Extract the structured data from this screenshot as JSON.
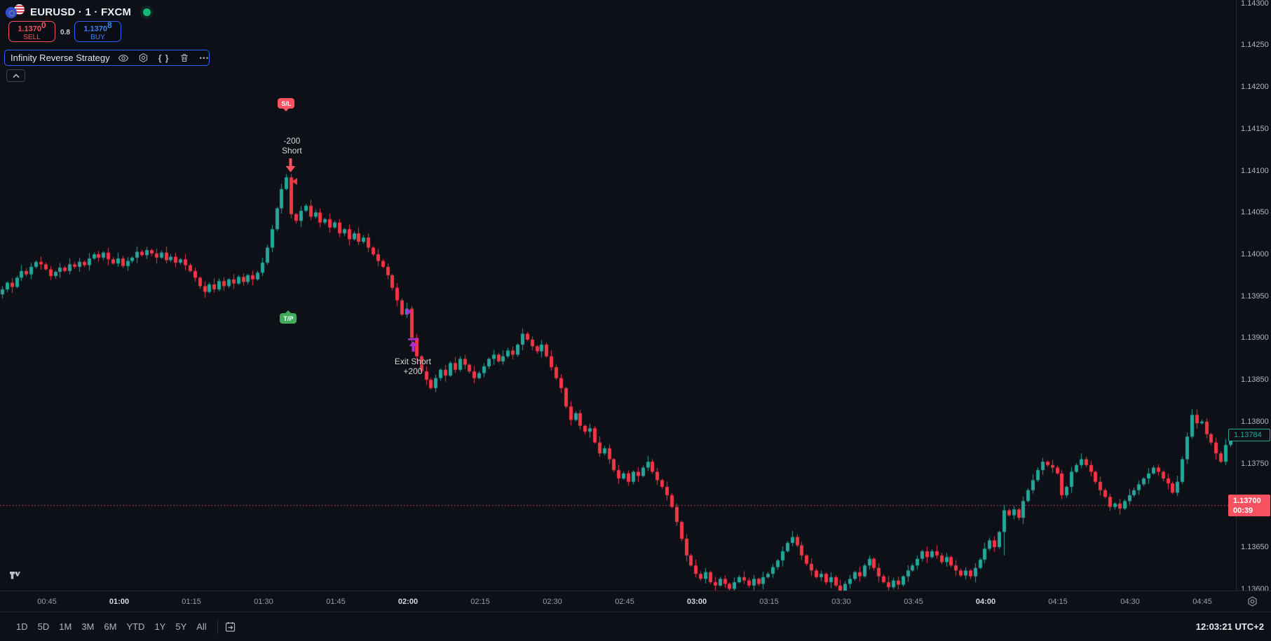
{
  "header": {
    "symbol_title": "EURUSD · 1 · FXCM",
    "sell_button": {
      "price_main": "1.1370",
      "price_sup": "0",
      "label": "SELL"
    },
    "spread": "0.8",
    "buy_button": {
      "price_main": "1.1370",
      "price_sup": "8",
      "label": "BUY"
    },
    "strategy_name": "Infinity Reverse Strategy",
    "more_dots": "•••",
    "braces": "{ }",
    "collapse_chevron": "︿"
  },
  "markers": {
    "sl_badge": "S/L",
    "tp_badge": "T/P",
    "entry_line1": "-200",
    "entry_line2": "Short",
    "exit_line1": "Exit Short",
    "exit_line2": "+200"
  },
  "price_axis": {
    "labels": [
      "1.14300",
      "1.14250",
      "1.14200",
      "1.14150",
      "1.14100",
      "1.14050",
      "1.14000",
      "1.13950",
      "1.13900",
      "1.13850",
      "1.13800",
      "1.13750",
      "1.13700",
      "1.13650",
      "1.13600"
    ],
    "last_price_label": "1.13784",
    "countdown_price": "1.13700",
    "countdown_time": "00:39"
  },
  "time_axis": {
    "labels": [
      "00:45",
      "01:00",
      "01:15",
      "01:30",
      "01:45",
      "02:00",
      "02:15",
      "02:30",
      "02:45",
      "03:00",
      "03:15",
      "03:30",
      "03:45",
      "04:00",
      "04:15",
      "04:30",
      "04:45"
    ],
    "hour_labels": [
      "01:00",
      "02:00",
      "03:00",
      "04:00"
    ]
  },
  "toolbar": {
    "ranges": [
      "1D",
      "5D",
      "1M",
      "3M",
      "6M",
      "YTD",
      "1Y",
      "5Y",
      "All"
    ],
    "clock": "12:03:21 UTC+2"
  },
  "colors": {
    "up": "#26a69a",
    "down": "#f23645",
    "sell_red": "#f7525f",
    "buy_blue": "#2962ff",
    "tp_green": "#43a95c",
    "exit_purple": "#ab2fd6",
    "last_price": "#26a69a"
  },
  "chart_data": {
    "type": "candlestick",
    "symbol": "EURUSD",
    "interval_minutes": 1,
    "exchange": "FXCM",
    "grid": false,
    "ylim": [
      1.13598,
      1.14304
    ],
    "price_line": {
      "price": 1.137,
      "style": "dotted",
      "color": "#f7525f"
    },
    "last_price": 1.13784,
    "bid": 1.137,
    "ask": 1.13708,
    "first_open": 1.13952,
    "closes": [
      1.13958,
      1.13966,
      1.13961,
      1.13972,
      1.1398,
      1.13976,
      1.13985,
      1.13991,
      1.13988,
      1.13982,
      1.13974,
      1.13979,
      1.13984,
      1.1398,
      1.13988,
      1.13985,
      1.13991,
      1.13987,
      1.13995,
      1.14,
      1.13996,
      1.14002,
      1.13994,
      1.13989,
      1.13995,
      1.13986,
      1.13992,
      1.13996,
      1.14003,
      1.13999,
      1.14005,
      1.14001,
      1.13996,
      1.14002,
      1.13993,
      1.13997,
      1.1399,
      1.13994,
      1.13987,
      1.1398,
      1.13972,
      1.13962,
      1.13955,
      1.13964,
      1.13958,
      1.13968,
      1.13962,
      1.1397,
      1.13965,
      1.13973,
      1.13967,
      1.13975,
      1.1397,
      1.13978,
      1.1399,
      1.14008,
      1.1403,
      1.14055,
      1.14078,
      1.14092,
      1.14048,
      1.1404,
      1.14052,
      1.14058,
      1.14045,
      1.1405,
      1.14038,
      1.14042,
      1.14032,
      1.14038,
      1.14025,
      1.1403,
      1.14018,
      1.14025,
      1.14015,
      1.1402,
      1.14008,
      1.14,
      1.13992,
      1.13985,
      1.13975,
      1.1396,
      1.13945,
      1.13928,
      1.13935,
      1.139,
      1.13878,
      1.1386,
      1.1385,
      1.1384,
      1.13852,
      1.13862,
      1.13855,
      1.1387,
      1.13862,
      1.13875,
      1.13868,
      1.1386,
      1.13852,
      1.13858,
      1.13866,
      1.13875,
      1.1388,
      1.13872,
      1.13878,
      1.13885,
      1.1388,
      1.13892,
      1.13905,
      1.13898,
      1.1389,
      1.13884,
      1.13892,
      1.13878,
      1.13865,
      1.13852,
      1.1384,
      1.13818,
      1.13802,
      1.1381,
      1.13795,
      1.13788,
      1.13792,
      1.13775,
      1.13762,
      1.13768,
      1.13755,
      1.13742,
      1.13732,
      1.13738,
      1.13728,
      1.1374,
      1.13735,
      1.13745,
      1.13752,
      1.1374,
      1.1373,
      1.13722,
      1.13712,
      1.13698,
      1.1368,
      1.1366,
      1.1364,
      1.13628,
      1.13618,
      1.13612,
      1.1362,
      1.13608,
      1.13604,
      1.13612,
      1.13606,
      1.136,
      1.13608,
      1.13614,
      1.1361,
      1.13604,
      1.13612,
      1.13606,
      1.13614,
      1.13618,
      1.13626,
      1.13634,
      1.13645,
      1.13655,
      1.13662,
      1.13652,
      1.1364,
      1.1363,
      1.13622,
      1.13614,
      1.13618,
      1.13608,
      1.13614,
      1.13604,
      1.13598,
      1.13606,
      1.13612,
      1.1362,
      1.13615,
      1.13628,
      1.13636,
      1.13625,
      1.13615,
      1.13608,
      1.13602,
      1.1361,
      1.13605,
      1.13615,
      1.13622,
      1.13628,
      1.13636,
      1.13645,
      1.13638,
      1.13645,
      1.1364,
      1.13632,
      1.13638,
      1.13628,
      1.13622,
      1.13616,
      1.13622,
      1.13615,
      1.13625,
      1.13635,
      1.13648,
      1.13658,
      1.1365,
      1.13668,
      1.13694,
      1.13688,
      1.13695,
      1.13685,
      1.13705,
      1.13718,
      1.1373,
      1.13742,
      1.13752,
      1.13748,
      1.13745,
      1.13738,
      1.13712,
      1.13722,
      1.1374,
      1.13748,
      1.13755,
      1.13748,
      1.1374,
      1.13728,
      1.13718,
      1.1371,
      1.13698,
      1.13702,
      1.13696,
      1.13705,
      1.13712,
      1.13718,
      1.13725,
      1.13732,
      1.13738,
      1.13745,
      1.1374,
      1.13732,
      1.13726,
      1.13715,
      1.13728,
      1.13755,
      1.13782,
      1.13808,
      1.13798,
      1.138,
      1.13785,
      1.13775,
      1.13762,
      1.13752,
      1.13772,
      1.13784
    ],
    "wick_overrides": {
      "54": {
        "h": 1.13996
      },
      "59": {
        "h": 1.14096
      },
      "85": {
        "l": 1.1389
      },
      "208": {
        "l": 1.1364
      },
      "247": {
        "h": 1.13815
      }
    },
    "trade_markers": {
      "short_entry": {
        "bar_index": 59,
        "sl_badge_price": 1.14178,
        "tp_badge_price": 1.13923
      },
      "short_exit": {
        "bar_index": 85,
        "marker_price": 1.13934
      }
    }
  }
}
